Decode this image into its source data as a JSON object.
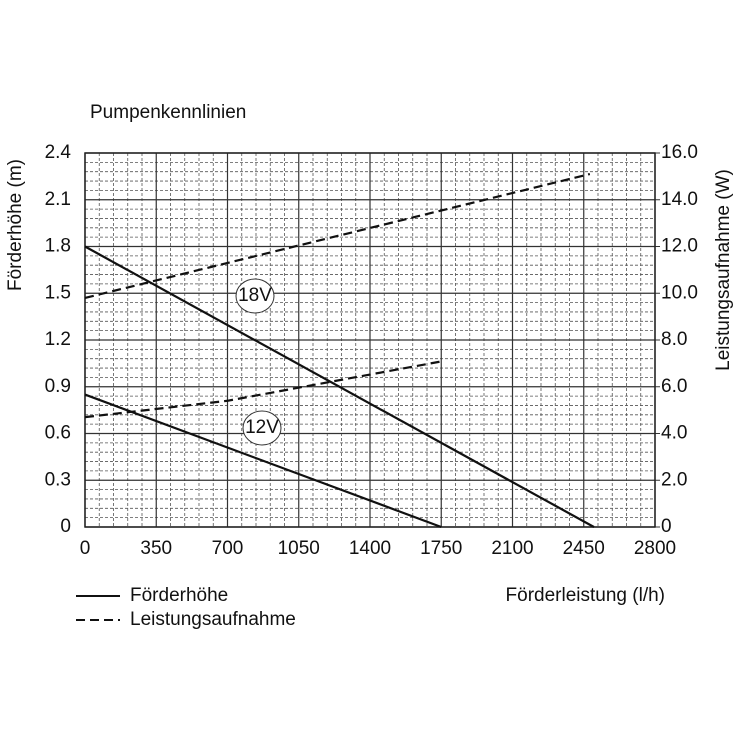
{
  "chart_data": {
    "type": "line",
    "title": "Pumpenkennlinien",
    "x_label": "Förderleistung (l/h)",
    "y_label": "Förderhöhe (m)",
    "y2_label": "Leistungsaufnahme (W)",
    "xlim": [
      0,
      2800
    ],
    "xticks": [
      0,
      350,
      700,
      1050,
      1400,
      1750,
      2100,
      2450,
      2800
    ],
    "ylim": [
      0,
      2.4
    ],
    "yticks": [
      0,
      0.3,
      0.6,
      0.9,
      1.2,
      1.5,
      1.8,
      2.1,
      2.4
    ],
    "y2lim": [
      0,
      16
    ],
    "y2ticks": [
      0,
      {
        "value": 2,
        "label": "2.0"
      },
      {
        "value": 4,
        "label": "4.0"
      },
      {
        "value": 6,
        "label": "6.0"
      },
      {
        "value": 8,
        "label": "8.0"
      },
      {
        "value": 10,
        "label": "10.0"
      },
      {
        "value": 12,
        "label": "12.0"
      },
      {
        "value": 14,
        "label": "14.0"
      },
      {
        "value": 16,
        "label": "16.0"
      }
    ],
    "grid": true,
    "color": "#111111",
    "series": [
      {
        "name": "Förderhöhe",
        "dashed": false,
        "lines": [
          {
            "label": "18V",
            "x": [
              0,
              2500
            ],
            "values": [
              1.8,
              0
            ]
          },
          {
            "label": "12V",
            "x": [
              0,
              1750
            ],
            "values": [
              0.85,
              0
            ]
          }
        ]
      },
      {
        "name": "Leistungsaufnahme",
        "axis": "y2",
        "dashed": true,
        "lines": [
          {
            "x": [
              0,
              2480
            ],
            "values": [
              9.8,
              15.1
            ]
          },
          {
            "x": [
              0,
              700,
              1760
            ],
            "values": [
              4.7,
              5.4,
              7.1
            ]
          }
        ]
      }
    ]
  }
}
